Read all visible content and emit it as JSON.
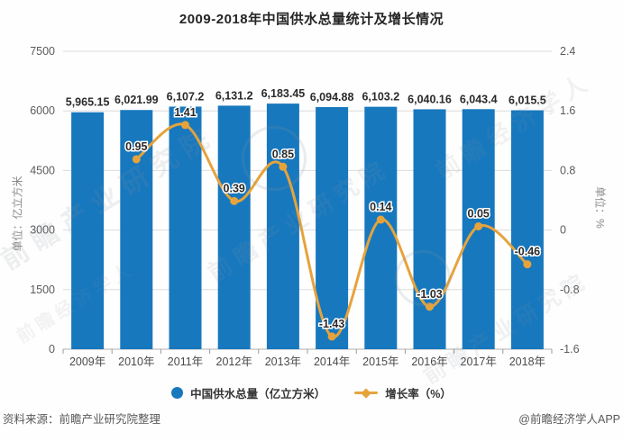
{
  "title": "2009-2018年中国供水总量统计及增长情况",
  "chart_data": {
    "type": "bar",
    "subtype": "bar-line-combo",
    "categories": [
      "2009年",
      "2010年",
      "2011年",
      "2012年",
      "2013年",
      "2014年",
      "2015年",
      "2016年",
      "2017年",
      "2018年"
    ],
    "series": [
      {
        "name": "中国供水总量（亿立方米）",
        "type": "bar",
        "color": "#1778be",
        "values": [
          5965.15,
          6021.99,
          6107.2,
          6131.2,
          6183.45,
          6094.88,
          6103.2,
          6040.16,
          6043.4,
          6015.5
        ],
        "labels": [
          "5,965.15",
          "6,021.99",
          "6,107.2",
          "6,131.2",
          "6,183.45",
          "6,094.88",
          "6,103.2",
          "6,040.16",
          "6,043.4",
          "6,015.5"
        ]
      },
      {
        "name": "增长率（%）",
        "type": "line",
        "color": "#e6a33c",
        "values": [
          null,
          0.95,
          1.41,
          0.39,
          0.85,
          -1.43,
          0.14,
          -1.03,
          0.05,
          -0.46
        ],
        "labels": [
          "",
          "0.95",
          "1.41",
          "0.39",
          "0.85",
          "-1.43",
          "0.14",
          "-1.03",
          "0.05",
          "-0.46"
        ]
      }
    ],
    "y_left": {
      "name": "单位：亿立方米",
      "min": 0,
      "max": 7500,
      "ticks": [
        "0",
        "1500",
        "3000",
        "4500",
        "6000",
        "7500"
      ]
    },
    "y_right": {
      "name": "单位：%",
      "min": -1.6,
      "max": 2.4,
      "ticks": [
        "-1.6",
        "-0.8",
        "0",
        "0.8",
        "1.6",
        "2.4"
      ]
    },
    "grid": true,
    "legend_position": "bottom"
  },
  "legend": [
    {
      "label": "中国供水总量（亿立方米）",
      "marker": "circle",
      "color": "#1778be"
    },
    {
      "label": "增长率（%）",
      "marker": "line-diamond",
      "color": "#e6a33c"
    }
  ],
  "footer": {
    "source": "资料来源：前瞻产业研究院整理",
    "credit": "@前瞻经济学人APP"
  },
  "watermarks": {
    "texts": [
      "前瞻产业研究院",
      "前瞻经济学人"
    ]
  },
  "colors": {
    "bar": "#1778be",
    "line": "#e6a33c",
    "gridline": "#dcdcdc",
    "axis_line": "#b0b0b0",
    "tick": "#999999",
    "tick_label": "#5b5b5b",
    "x_label": "#4a4a4a",
    "value_label": "#2a2a2a"
  }
}
